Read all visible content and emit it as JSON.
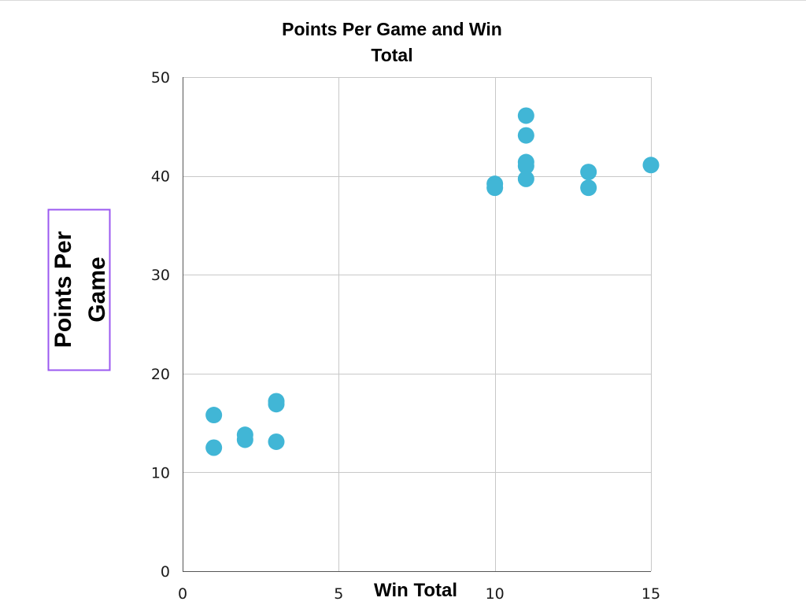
{
  "chart_data": {
    "type": "scatter",
    "title_lines": [
      "Points Per Game and Win",
      "Total"
    ],
    "xlabel": "Win Total",
    "ylabel_lines": [
      "Points Per",
      "Game"
    ],
    "xlim": [
      0,
      15
    ],
    "ylim": [
      0,
      50
    ],
    "xticks": [
      0,
      5,
      10,
      15
    ],
    "yticks": [
      0,
      10,
      20,
      30,
      40,
      50
    ],
    "grid": true,
    "legend": "none",
    "series": [
      {
        "color": "#41b6d6",
        "points": [
          {
            "x": 1,
            "y": 15.8
          },
          {
            "x": 1,
            "y": 12.5
          },
          {
            "x": 2,
            "y": 13.8
          },
          {
            "x": 2,
            "y": 13.3
          },
          {
            "x": 3,
            "y": 17.2
          },
          {
            "x": 3,
            "y": 16.9
          },
          {
            "x": 3,
            "y": 13.1
          },
          {
            "x": 10,
            "y": 39.2
          },
          {
            "x": 10,
            "y": 38.8
          },
          {
            "x": 11,
            "y": 46.1
          },
          {
            "x": 11,
            "y": 44.1
          },
          {
            "x": 11,
            "y": 41.4
          },
          {
            "x": 11,
            "y": 41.0
          },
          {
            "x": 11,
            "y": 39.7
          },
          {
            "x": 13,
            "y": 40.4
          },
          {
            "x": 13,
            "y": 38.8
          },
          {
            "x": 15,
            "y": 41.1
          }
        ]
      }
    ]
  },
  "colors": {
    "point": "#41b6d6",
    "grid": "#c8c8c8",
    "ylabel_box_border": "#9b59f0"
  }
}
